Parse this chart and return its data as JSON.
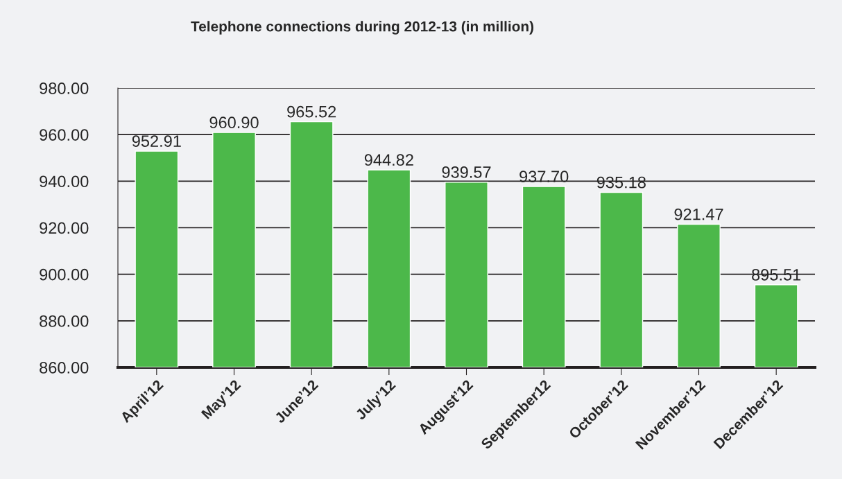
{
  "chart_data": {
    "type": "bar",
    "title": "Telephone connections during 2012-13 (in million)",
    "categories": [
      "April’12",
      "May’12",
      "June’12",
      "July’12",
      "August’12",
      "September12",
      "October’12",
      "November’12",
      "December’12"
    ],
    "values": [
      952.91,
      960.9,
      965.52,
      944.82,
      939.57,
      937.7,
      935.18,
      921.47,
      895.51
    ],
    "value_labels": [
      "952.91",
      "960.90",
      "965.52",
      "944.82",
      "939.57",
      "937.70",
      "935.18",
      "921.47",
      "895.51"
    ],
    "color": "#4cb84a",
    "ylim": [
      860,
      980
    ],
    "yticks": [
      {
        "value": 860,
        "label": "860.00"
      },
      {
        "value": 880,
        "label": "880.00"
      },
      {
        "value": 900,
        "label": "900.00"
      },
      {
        "value": 920,
        "label": "920.00"
      },
      {
        "value": 940,
        "label": "940.00"
      },
      {
        "value": 960,
        "label": "960.00"
      },
      {
        "value": 980,
        "label": "980.00"
      }
    ],
    "grid": "y",
    "legend": false
  }
}
